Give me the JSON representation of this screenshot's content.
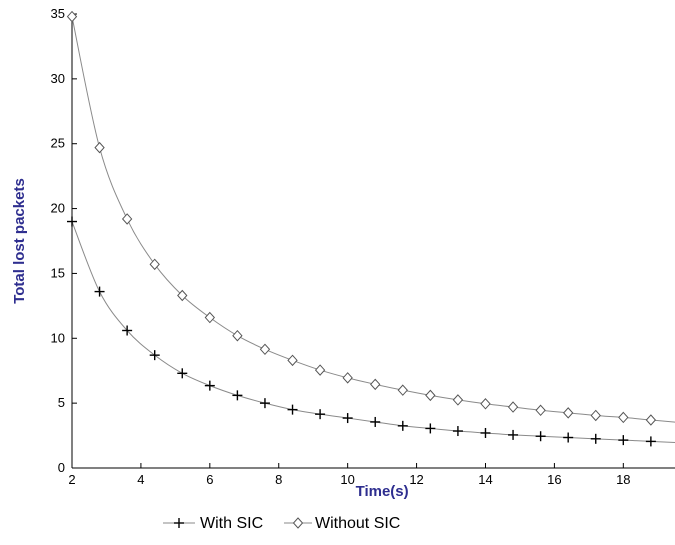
{
  "chart_data": {
    "type": "line",
    "xlabel": "Time(s)",
    "ylabel": "Total lost packets",
    "xlim": [
      2,
      19.5
    ],
    "ylim": [
      0,
      35
    ],
    "xticks": [
      2,
      4,
      6,
      8,
      10,
      12,
      14,
      16,
      18
    ],
    "yticks": [
      0,
      5,
      10,
      15,
      20,
      25,
      30,
      35
    ],
    "grid": false,
    "legend_position": "bottom-center",
    "series": [
      {
        "name": "With SIC",
        "marker": "plus",
        "color": "#000000",
        "x": [
          2,
          2.8,
          3.6,
          4.4,
          5.2,
          6.0,
          6.8,
          7.6,
          8.4,
          9.2,
          10.0,
          10.8,
          11.6,
          12.4,
          13.2,
          14.0,
          14.8,
          15.6,
          16.4,
          17.2,
          18.0,
          18.8
        ],
        "y": [
          19.0,
          13.6,
          10.6,
          8.7,
          7.3,
          6.35,
          5.6,
          5.0,
          4.5,
          4.15,
          3.85,
          3.55,
          3.25,
          3.05,
          2.85,
          2.7,
          2.55,
          2.45,
          2.35,
          2.25,
          2.15,
          2.05
        ]
      },
      {
        "name": "Without SIC",
        "marker": "diamond",
        "color": "#000000",
        "x": [
          2,
          2.8,
          3.6,
          4.4,
          5.2,
          6.0,
          6.8,
          7.6,
          8.4,
          9.2,
          10.0,
          10.8,
          11.6,
          12.4,
          13.2,
          14.0,
          14.8,
          15.6,
          16.4,
          17.2,
          18.0,
          18.8
        ],
        "y": [
          34.8,
          24.7,
          19.2,
          15.7,
          13.3,
          11.6,
          10.2,
          9.15,
          8.3,
          7.55,
          6.95,
          6.45,
          6.0,
          5.6,
          5.25,
          4.95,
          4.7,
          4.45,
          4.25,
          4.05,
          3.9,
          3.7
        ]
      }
    ],
    "colors": {
      "axis": "#000000",
      "curve": "#8a8a8a",
      "ylabel": "#2e2e8f",
      "xlabel": "#2e2e8f"
    }
  }
}
